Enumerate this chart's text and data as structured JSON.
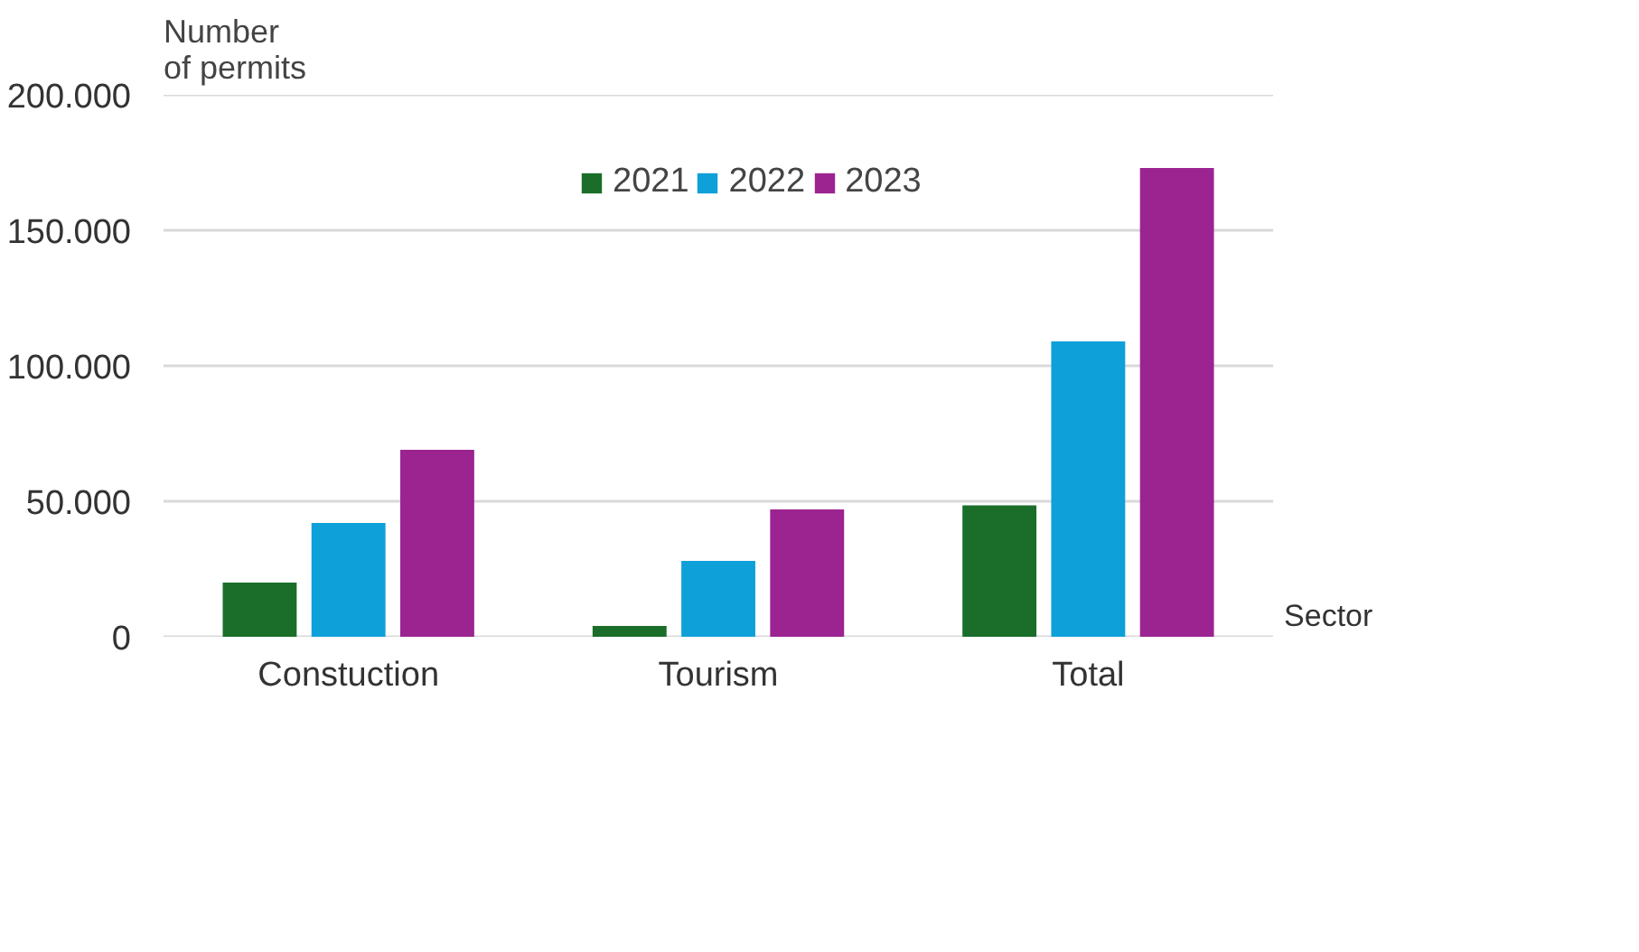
{
  "chart_data": {
    "type": "bar",
    "ylabel": "Number\nof permits",
    "xlabel": "Sector",
    "categories": [
      "Constuction",
      "Tourism",
      "Total"
    ],
    "series": [
      {
        "name": "2021",
        "color": "#1a6e2a",
        "values": [
          20000,
          4000,
          48500
        ]
      },
      {
        "name": "2022",
        "color": "#0ea0d8",
        "values": [
          42000,
          28000,
          109000
        ]
      },
      {
        "name": "2023",
        "color": "#9b2491",
        "values": [
          69000,
          47000,
          173000
        ]
      }
    ],
    "ylim": [
      0,
      200000
    ],
    "yticks": [
      {
        "value": 0,
        "label": "0"
      },
      {
        "value": 50000,
        "label": "50.000"
      },
      {
        "value": 100000,
        "label": "100.000"
      },
      {
        "value": 150000,
        "label": "150.000"
      },
      {
        "value": 200000,
        "label": "200.000"
      }
    ],
    "grid": "y",
    "legend": "top"
  }
}
